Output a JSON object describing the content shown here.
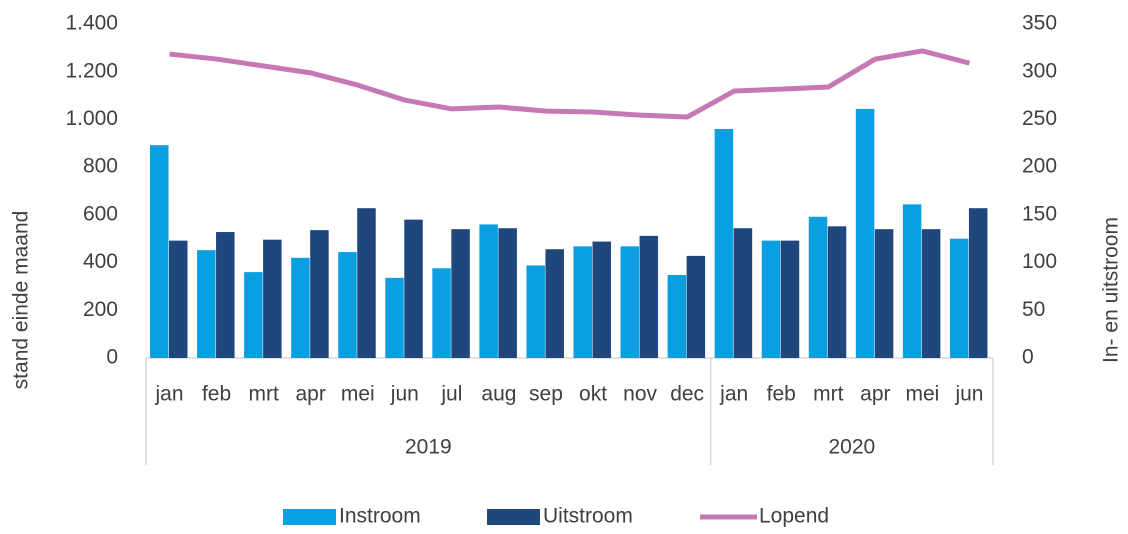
{
  "chart_data": {
    "type": "bar",
    "y_label": "stand einde maand",
    "y2_label": "In- en uitstroom",
    "groups": [
      {
        "name": "2019",
        "categories": [
          "jan",
          "feb",
          "mrt",
          "apr",
          "mei",
          "jun",
          "jul",
          "aug",
          "sep",
          "okt",
          "nov",
          "dec"
        ]
      },
      {
        "name": "2020",
        "categories": [
          "jan",
          "feb",
          "mrt",
          "apr",
          "mei",
          "jun"
        ]
      }
    ],
    "series": [
      {
        "name": "Instroom",
        "color": "#0a9fe0",
        "axis": "y2",
        "values": [
          223,
          113,
          90,
          105,
          111,
          84,
          94,
          140,
          97,
          117,
          117,
          87,
          240,
          123,
          148,
          261,
          161,
          125
        ]
      },
      {
        "name": "Uitstroom",
        "color": "#1f477c",
        "axis": "y2",
        "values": [
          123,
          132,
          124,
          134,
          157,
          145,
          135,
          136,
          114,
          122,
          128,
          107,
          136,
          123,
          138,
          135,
          135,
          157
        ]
      },
      {
        "name": "Lopend",
        "color": "#c678b5",
        "type": "line",
        "values": [
          1274,
          1253,
          1224,
          1195,
          1144,
          1081,
          1044,
          1052,
          1035,
          1031,
          1018,
          1010,
          1119,
          1127,
          1136,
          1253,
          1287,
          1236
        ]
      }
    ],
    "ylim": [
      0,
      1400
    ],
    "yticks": [
      0,
      200,
      400,
      600,
      800,
      {
        "value": 1000,
        "label": "1.000"
      },
      {
        "value": 1200,
        "label": "1.200"
      },
      {
        "value": 1400,
        "label": "1.400"
      }
    ],
    "y2lim": [
      0,
      350
    ],
    "y2ticks": [
      0,
      50,
      100,
      150,
      200,
      250,
      300,
      350
    ],
    "grid": false,
    "legend": "bottom"
  }
}
